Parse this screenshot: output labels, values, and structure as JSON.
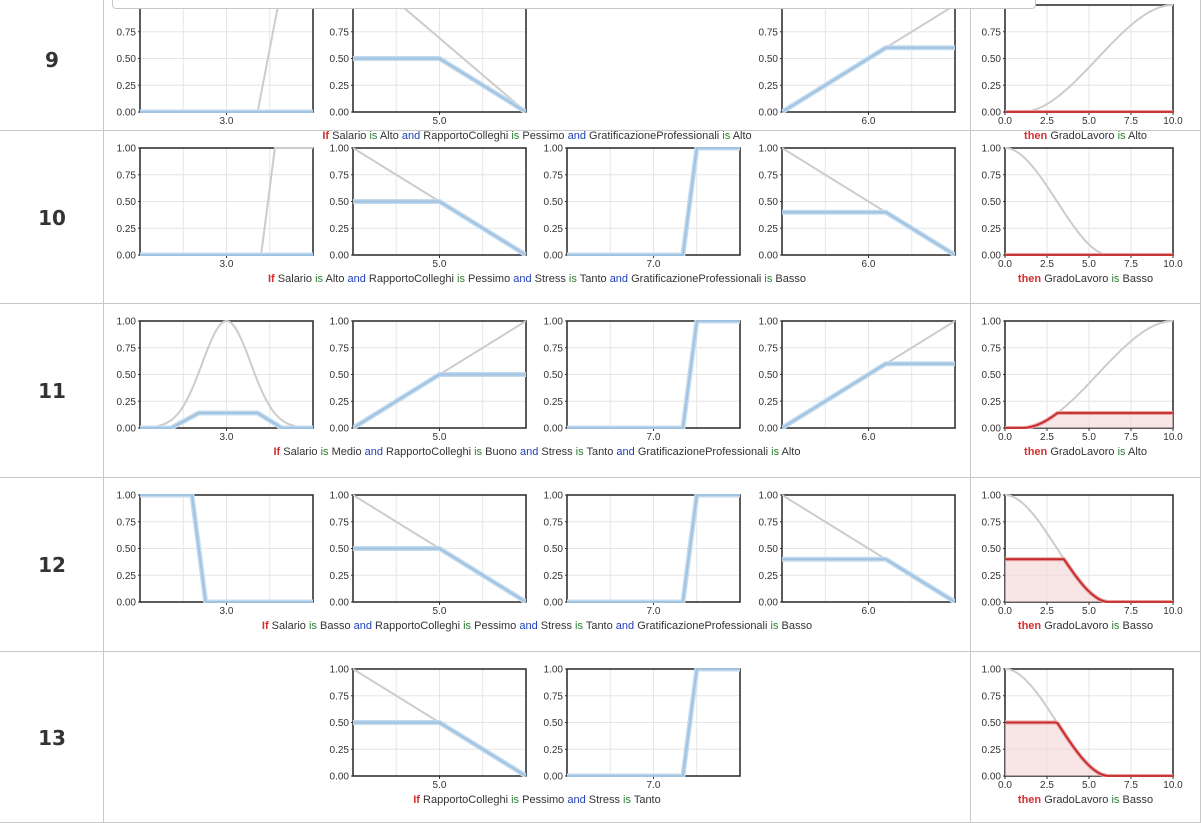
{
  "colors": {
    "membership": "#9fc3e0",
    "membership_edge": "#c4daee",
    "term": "#cccccc",
    "output": "#c62828",
    "output_edge": "#e6a0a0",
    "if_then": "#d32f2f",
    "is": "#2e7d32",
    "and": "#1e3fb5",
    "grid": "#e6e6e6",
    "row_bg": "#f5f5f5",
    "cell_border": "#c8c8c8"
  },
  "axes": {
    "antecedent_y_ticks": [
      "0.00",
      "0.25",
      "0.50",
      "0.75",
      "1.00"
    ],
    "consequent_x_ticks": [
      "0.0",
      "2.5",
      "5.0",
      "7.5",
      "10.0"
    ]
  },
  "rules": [
    {
      "number": "9",
      "caption": [
        {
          "t": "If",
          "k": "if"
        },
        {
          "t": " Salario ",
          "k": "w"
        },
        {
          "t": "is",
          "k": "is"
        },
        {
          "t": " Alto ",
          "k": "w"
        },
        {
          "t": "and",
          "k": "and"
        },
        {
          "t": " RapportoColleghi ",
          "k": "w"
        },
        {
          "t": "is",
          "k": "is"
        },
        {
          "t": " Pessimo ",
          "k": "w"
        },
        {
          "t": "and",
          "k": "and"
        },
        {
          "t": " GratificazioneProfessionali ",
          "k": "w"
        },
        {
          "t": "is",
          "k": "is"
        },
        {
          "t": " Alto",
          "k": "w"
        }
      ],
      "then": [
        {
          "t": "then",
          "k": "then"
        },
        {
          "t": " GradoLavoro ",
          "k": "w"
        },
        {
          "t": "is",
          "k": "is"
        },
        {
          "t": " Alto",
          "k": "w"
        }
      ],
      "plots": [
        {
          "slot": 0,
          "x_tick": "3.0",
          "term": [
            [
              0,
              0
            ],
            [
              0.68,
              0
            ],
            [
              0.87,
              1.6
            ]
          ],
          "mu": [
            [
              0,
              0
            ],
            [
              1,
              0
            ]
          ]
        },
        {
          "slot": 1,
          "x_tick": "5.0",
          "term": [
            [
              0,
              1.38
            ],
            [
              1,
              0
            ]
          ],
          "mu": [
            [
              0,
              0.5
            ],
            [
              0.5,
              0.5
            ],
            [
              1,
              0
            ]
          ]
        },
        {
          "slot": 3,
          "x_tick": "6.0",
          "term": [
            [
              0,
              0
            ],
            [
              0.6,
              0.6
            ],
            [
              1,
              1
            ]
          ],
          "mu": [
            [
              0,
              0
            ],
            [
              0.6,
              0.6
            ],
            [
              1,
              0.6
            ]
          ]
        }
      ],
      "output": {
        "term": "s-high",
        "level": 0.0
      }
    },
    {
      "number": "10",
      "caption": [
        {
          "t": "If",
          "k": "if"
        },
        {
          "t": " Salario ",
          "k": "w"
        },
        {
          "t": "is",
          "k": "is"
        },
        {
          "t": " Alto ",
          "k": "w"
        },
        {
          "t": "and",
          "k": "and"
        },
        {
          "t": " RapportoColleghi ",
          "k": "w"
        },
        {
          "t": "is",
          "k": "is"
        },
        {
          "t": " Pessimo ",
          "k": "w"
        },
        {
          "t": "and",
          "k": "and"
        },
        {
          "t": " Stress ",
          "k": "w"
        },
        {
          "t": "is",
          "k": "is"
        },
        {
          "t": " Tanto ",
          "k": "w"
        },
        {
          "t": "and",
          "k": "and"
        },
        {
          "t": " GratificazioneProfessionali ",
          "k": "w"
        },
        {
          "t": "is",
          "k": "is"
        },
        {
          "t": " Basso",
          "k": "w"
        }
      ],
      "then": [
        {
          "t": "then",
          "k": "then"
        },
        {
          "t": " GradoLavoro ",
          "k": "w"
        },
        {
          "t": "is",
          "k": "is"
        },
        {
          "t": " Basso",
          "k": "w"
        }
      ],
      "plots": [
        {
          "slot": 0,
          "x_tick": "3.0",
          "term": [
            [
              0,
              0
            ],
            [
              0.7,
              0
            ],
            [
              0.78,
              1
            ],
            [
              1,
              1
            ]
          ],
          "mu": [
            [
              0,
              0
            ],
            [
              1,
              0
            ]
          ]
        },
        {
          "slot": 1,
          "x_tick": "5.0",
          "term": [
            [
              0,
              1
            ],
            [
              1,
              0
            ]
          ],
          "mu": [
            [
              0,
              0.5
            ],
            [
              0.5,
              0.5
            ],
            [
              1,
              0
            ]
          ]
        },
        {
          "slot": 2,
          "x_tick": "7.0",
          "term": [
            [
              0,
              0
            ],
            [
              0.67,
              0
            ],
            [
              0.75,
              1
            ],
            [
              1,
              1
            ]
          ],
          "mu": [
            [
              0,
              0
            ],
            [
              0.67,
              0
            ],
            [
              0.75,
              1
            ],
            [
              1,
              1
            ]
          ]
        },
        {
          "slot": 3,
          "x_tick": "6.0",
          "term": [
            [
              0,
              1
            ],
            [
              1,
              0
            ]
          ],
          "mu": [
            [
              0,
              0.4
            ],
            [
              0.6,
              0.4
            ],
            [
              1,
              0
            ]
          ]
        }
      ],
      "output": {
        "term": "s-low",
        "level": 0.0
      }
    },
    {
      "number": "11",
      "caption": [
        {
          "t": "If",
          "k": "if"
        },
        {
          "t": " Salario ",
          "k": "w"
        },
        {
          "t": "is",
          "k": "is"
        },
        {
          "t": " Medio ",
          "k": "w"
        },
        {
          "t": "and",
          "k": "and"
        },
        {
          "t": " RapportoColleghi ",
          "k": "w"
        },
        {
          "t": "is",
          "k": "is"
        },
        {
          "t": " Buono ",
          "k": "w"
        },
        {
          "t": "and",
          "k": "and"
        },
        {
          "t": " Stress ",
          "k": "w"
        },
        {
          "t": "is",
          "k": "is"
        },
        {
          "t": " Tanto ",
          "k": "w"
        },
        {
          "t": "and",
          "k": "and"
        },
        {
          "t": " GratificazioneProfessionali ",
          "k": "w"
        },
        {
          "t": "is",
          "k": "is"
        },
        {
          "t": " Alto",
          "k": "w"
        }
      ],
      "then": [
        {
          "t": "then",
          "k": "then"
        },
        {
          "t": " GradoLavoro ",
          "k": "w"
        },
        {
          "t": "is",
          "k": "is"
        },
        {
          "t": " Alto",
          "k": "w"
        }
      ],
      "plots": [
        {
          "slot": 0,
          "x_tick": "3.0",
          "term": "bell",
          "mu": [
            [
              0,
              0
            ],
            [
              0.18,
              0
            ],
            [
              0.34,
              0.14
            ],
            [
              0.68,
              0.14
            ],
            [
              0.82,
              0
            ],
            [
              1,
              0
            ]
          ]
        },
        {
          "slot": 1,
          "x_tick": "5.0",
          "term": [
            [
              0,
              0
            ],
            [
              1,
              1
            ]
          ],
          "mu": [
            [
              0,
              0
            ],
            [
              0.5,
              0.5
            ],
            [
              1,
              0.5
            ]
          ]
        },
        {
          "slot": 2,
          "x_tick": "7.0",
          "term": [
            [
              0,
              0
            ],
            [
              0.67,
              0
            ],
            [
              0.75,
              1
            ],
            [
              1,
              1
            ]
          ],
          "mu": [
            [
              0,
              0
            ],
            [
              0.67,
              0
            ],
            [
              0.75,
              1
            ],
            [
              1,
              1
            ]
          ]
        },
        {
          "slot": 3,
          "x_tick": "6.0",
          "term": [
            [
              0,
              0
            ],
            [
              1,
              1
            ]
          ],
          "mu": [
            [
              0,
              0
            ],
            [
              0.6,
              0.6
            ],
            [
              1,
              0.6
            ]
          ]
        }
      ],
      "output": {
        "term": "s-high",
        "level": 0.14
      }
    },
    {
      "number": "12",
      "caption": [
        {
          "t": "If",
          "k": "if"
        },
        {
          "t": " Salario ",
          "k": "w"
        },
        {
          "t": "is",
          "k": "is"
        },
        {
          "t": " Basso ",
          "k": "w"
        },
        {
          "t": "and",
          "k": "and"
        },
        {
          "t": " RapportoColleghi ",
          "k": "w"
        },
        {
          "t": "is",
          "k": "is"
        },
        {
          "t": " Pessimo ",
          "k": "w"
        },
        {
          "t": "and",
          "k": "and"
        },
        {
          "t": " Stress ",
          "k": "w"
        },
        {
          "t": "is",
          "k": "is"
        },
        {
          "t": " Tanto ",
          "k": "w"
        },
        {
          "t": "and",
          "k": "and"
        },
        {
          "t": " GratificazioneProfessionali ",
          "k": "w"
        },
        {
          "t": "is",
          "k": "is"
        },
        {
          "t": " Basso",
          "k": "w"
        }
      ],
      "then": [
        {
          "t": "then",
          "k": "then"
        },
        {
          "t": " GradoLavoro ",
          "k": "w"
        },
        {
          "t": "is",
          "k": "is"
        },
        {
          "t": " Basso",
          "k": "w"
        }
      ],
      "plots": [
        {
          "slot": 0,
          "x_tick": "3.0",
          "term": [
            [
              0,
              1
            ],
            [
              0.3,
              1
            ],
            [
              0.38,
              0
            ],
            [
              1,
              0
            ]
          ],
          "mu": [
            [
              0,
              1
            ],
            [
              0.3,
              1
            ],
            [
              0.38,
              0
            ],
            [
              1,
              0
            ]
          ]
        },
        {
          "slot": 1,
          "x_tick": "5.0",
          "term": [
            [
              0,
              1
            ],
            [
              1,
              0
            ]
          ],
          "mu": [
            [
              0,
              0.5
            ],
            [
              0.5,
              0.5
            ],
            [
              1,
              0
            ]
          ]
        },
        {
          "slot": 2,
          "x_tick": "7.0",
          "term": [
            [
              0,
              0
            ],
            [
              0.67,
              0
            ],
            [
              0.75,
              1
            ],
            [
              1,
              1
            ]
          ],
          "mu": [
            [
              0,
              0
            ],
            [
              0.67,
              0
            ],
            [
              0.75,
              1
            ],
            [
              1,
              1
            ]
          ]
        },
        {
          "slot": 3,
          "x_tick": "6.0",
          "term": [
            [
              0,
              1
            ],
            [
              1,
              0
            ]
          ],
          "mu": [
            [
              0,
              0.4
            ],
            [
              0.6,
              0.4
            ],
            [
              1,
              0
            ]
          ]
        }
      ],
      "output": {
        "term": "s-low",
        "level": 0.4
      }
    },
    {
      "number": "13",
      "caption": [
        {
          "t": "If",
          "k": "if"
        },
        {
          "t": " RapportoColleghi ",
          "k": "w"
        },
        {
          "t": "is",
          "k": "is"
        },
        {
          "t": " Pessimo ",
          "k": "w"
        },
        {
          "t": "and",
          "k": "and"
        },
        {
          "t": " Stress ",
          "k": "w"
        },
        {
          "t": "is",
          "k": "is"
        },
        {
          "t": " Tanto",
          "k": "w"
        }
      ],
      "then": [
        {
          "t": "then",
          "k": "then"
        },
        {
          "t": " GradoLavoro ",
          "k": "w"
        },
        {
          "t": "is",
          "k": "is"
        },
        {
          "t": " Basso",
          "k": "w"
        }
      ],
      "plots": [
        {
          "slot": 1,
          "x_tick": "5.0",
          "term": [
            [
              0,
              1
            ],
            [
              1,
              0
            ]
          ],
          "mu": [
            [
              0,
              0.5
            ],
            [
              0.5,
              0.5
            ],
            [
              1,
              0
            ]
          ]
        },
        {
          "slot": 2,
          "x_tick": "7.0",
          "term": [
            [
              0,
              0
            ],
            [
              0.67,
              0
            ],
            [
              0.75,
              1
            ],
            [
              1,
              1
            ]
          ],
          "mu": [
            [
              0,
              0
            ],
            [
              0.67,
              0
            ],
            [
              0.75,
              1
            ],
            [
              1,
              1
            ]
          ]
        }
      ],
      "output": {
        "term": "s-low",
        "level": 0.5
      }
    }
  ]
}
